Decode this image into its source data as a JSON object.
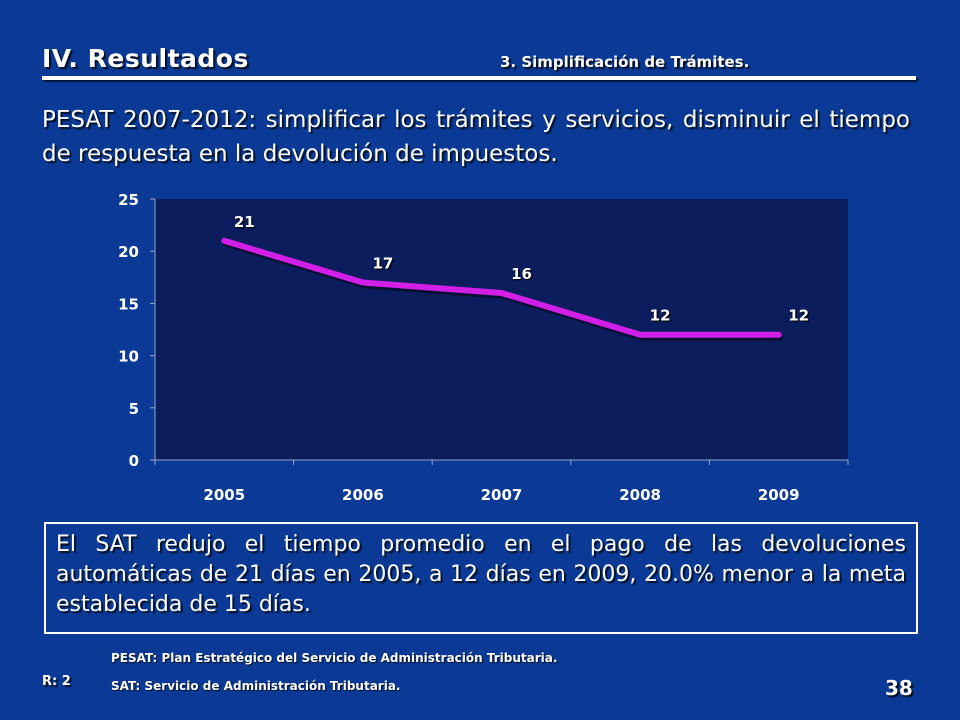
{
  "header": {
    "section_title": "IV. Resultados",
    "subsection_title": "3. Simplificación de Trámites."
  },
  "heading": "PESAT 2007-2012: simplificar los trámites y servicios, disminuir el tiempo de respuesta en la devolución de impuestos.",
  "chart_data": {
    "type": "line",
    "title": "",
    "xlabel": "",
    "ylabel": "",
    "categories": [
      "2005",
      "2006",
      "2007",
      "2008",
      "2009"
    ],
    "values": [
      21,
      17,
      16,
      12,
      12
    ],
    "ylim": [
      0,
      25
    ],
    "yticks": [
      0,
      5,
      10,
      15,
      20,
      25
    ],
    "grid": false,
    "legend": "none",
    "colors": {
      "plot_background": "#0c1d5e",
      "line": "#d21fe8"
    }
  },
  "summary": "El SAT redujo el tiempo promedio en el pago de las devoluciones automáticas de 21 días en 2005, a 12 días en 2009, 20.0% menor a la meta establecida de 15 días.",
  "footnotes": {
    "pesat": "PESAT: Plan Estratégico del Servicio de Administración Tributaria.",
    "sat": "SAT: Servicio de Administración Tributaria."
  },
  "ref_code": "R: 2",
  "page_number": "38"
}
